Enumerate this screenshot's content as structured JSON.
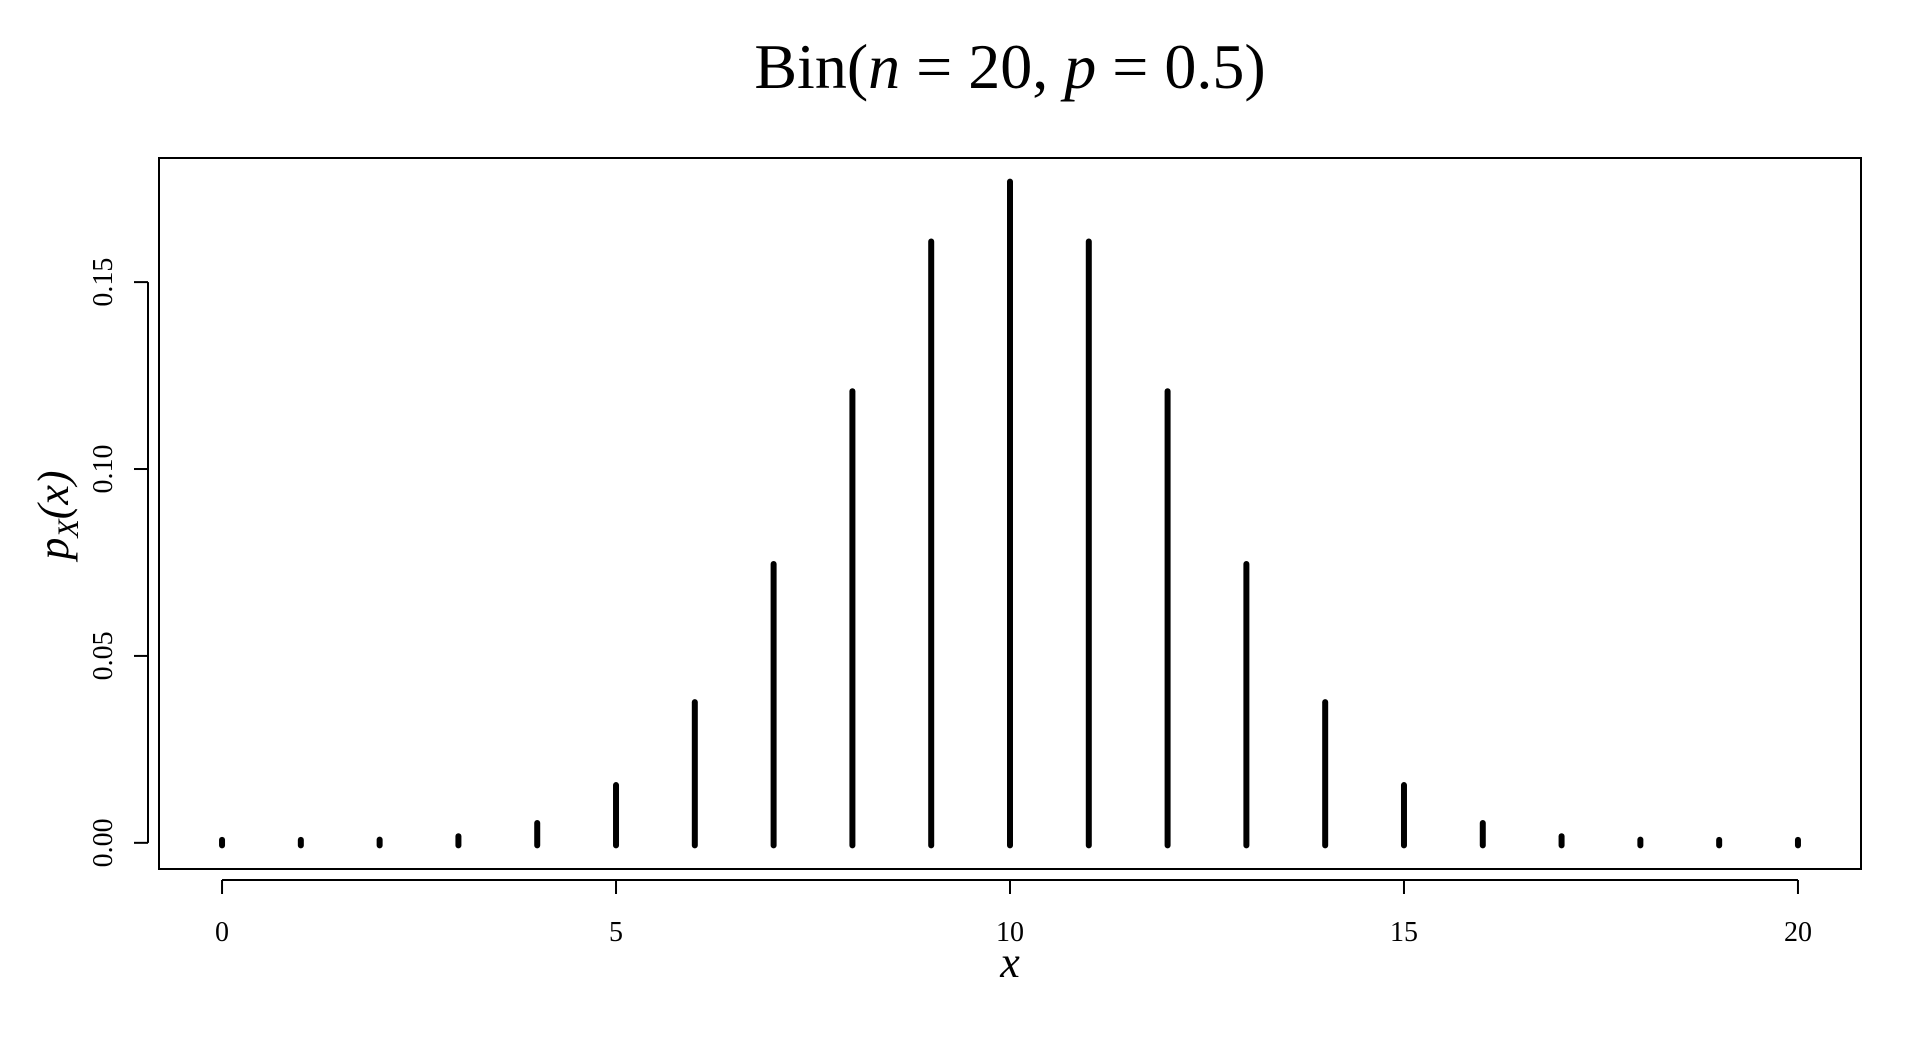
{
  "chart_data": {
    "type": "bar",
    "title": {
      "prefix": "Bin(",
      "var1": "n",
      "mid1": " = 20, ",
      "var2": "p",
      "mid2": " = 0.5)"
    },
    "xlabel": "x",
    "ylabel": {
      "base": "p",
      "sub": "X",
      "rest": "(x)"
    },
    "x": [
      0,
      1,
      2,
      3,
      4,
      5,
      6,
      7,
      8,
      9,
      10,
      11,
      12,
      13,
      14,
      15,
      16,
      17,
      18,
      19,
      20
    ],
    "values": [
      9.5e-07,
      1.91e-05,
      0.000181,
      0.001087,
      0.004621,
      0.014786,
      0.036964,
      0.073929,
      0.120134,
      0.160179,
      0.176197,
      0.160179,
      0.120134,
      0.073929,
      0.036964,
      0.014786,
      0.004621,
      0.001087,
      0.000181,
      1.91e-05,
      9.5e-07
    ],
    "xlim": [
      -0.8,
      20.8
    ],
    "ylim": [
      -0.007,
      0.1832
    ],
    "xticks": [
      0,
      5,
      10,
      15,
      20
    ],
    "xtick_labels": [
      "0",
      "5",
      "10",
      "15",
      "20"
    ],
    "yticks": [
      0.0,
      0.05,
      0.1,
      0.15
    ],
    "ytick_labels": [
      "0.00",
      "0.05",
      "0.10",
      "0.15"
    ],
    "grid": false,
    "line_color": "#000000"
  }
}
